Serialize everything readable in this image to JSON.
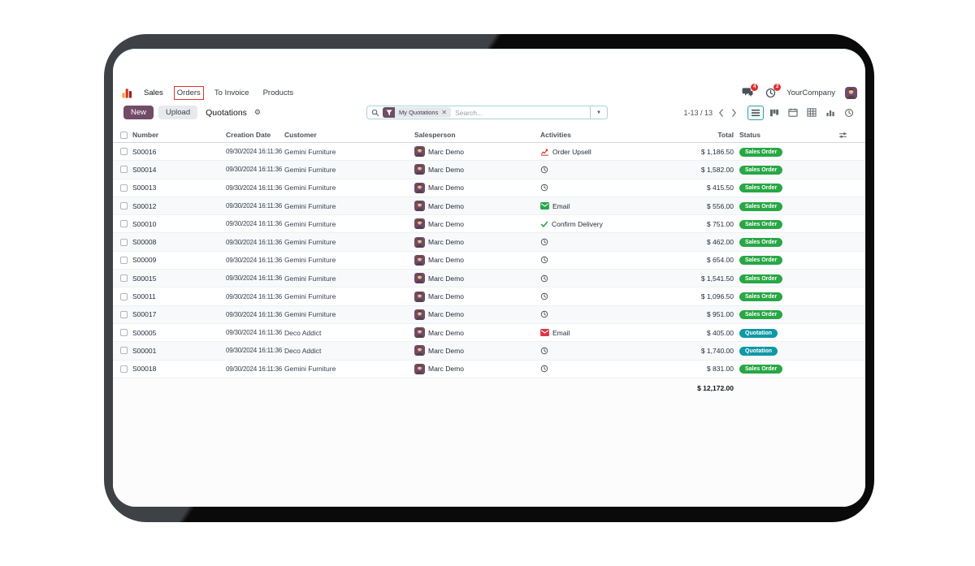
{
  "navbar": {
    "menus": [
      {
        "label": "Sales"
      },
      {
        "label": "Orders"
      },
      {
        "label": "To Invoice"
      },
      {
        "label": "Products"
      }
    ],
    "messages_badge": "4",
    "activities_badge": "2",
    "company": "YourCompany"
  },
  "control": {
    "new_label": "New",
    "upload_label": "Upload",
    "title": "Quotations",
    "search": {
      "facet_label": "My Quotations",
      "placeholder": "Search..."
    },
    "pager_display": "1-13 / 13"
  },
  "view_switcher": [
    "list",
    "kanban",
    "calendar",
    "pivot",
    "graph",
    "activity"
  ],
  "table": {
    "headers": [
      "Number",
      "Creation Date",
      "Customer",
      "Salesperson",
      "Activities",
      "Total",
      "Status"
    ],
    "rows": [
      {
        "number": "S00016",
        "date": "09/30/2024 16:11:36",
        "customer": "Gemini Furniture",
        "salesperson": "Marc Demo",
        "activity": {
          "type": "upsell",
          "label": "Order Upsell"
        },
        "total": "$ 1,186.50",
        "status": {
          "label": "Sales Order",
          "variant": "success"
        }
      },
      {
        "number": "S00014",
        "date": "09/30/2024 16:11:36",
        "customer": "Gemini Furniture",
        "salesperson": "Marc Demo",
        "activity": {
          "type": "clock",
          "label": ""
        },
        "total": "$ 1,582.00",
        "status": {
          "label": "Sales Order",
          "variant": "success"
        }
      },
      {
        "number": "S00013",
        "date": "09/30/2024 16:11:36",
        "customer": "Gemini Furniture",
        "salesperson": "Marc Demo",
        "activity": {
          "type": "clock",
          "label": ""
        },
        "total": "$ 415.50",
        "status": {
          "label": "Sales Order",
          "variant": "success"
        }
      },
      {
        "number": "S00012",
        "date": "09/30/2024 16:11:36",
        "customer": "Gemini Furniture",
        "salesperson": "Marc Demo",
        "activity": {
          "type": "email-green",
          "label": "Email"
        },
        "total": "$ 556.00",
        "status": {
          "label": "Sales Order",
          "variant": "success"
        }
      },
      {
        "number": "S00010",
        "date": "09/30/2024 16:11:36",
        "customer": "Gemini Furniture",
        "salesperson": "Marc Demo",
        "activity": {
          "type": "check",
          "label": "Confirm Delivery"
        },
        "total": "$ 751.00",
        "status": {
          "label": "Sales Order",
          "variant": "success"
        }
      },
      {
        "number": "S00008",
        "date": "09/30/2024 16:11:36",
        "customer": "Gemini Furniture",
        "salesperson": "Marc Demo",
        "activity": {
          "type": "clock",
          "label": ""
        },
        "total": "$ 462.00",
        "status": {
          "label": "Sales Order",
          "variant": "success"
        }
      },
      {
        "number": "S00009",
        "date": "09/30/2024 16:11:36",
        "customer": "Gemini Furniture",
        "salesperson": "Marc Demo",
        "activity": {
          "type": "clock",
          "label": ""
        },
        "total": "$ 654.00",
        "status": {
          "label": "Sales Order",
          "variant": "success"
        }
      },
      {
        "number": "S00015",
        "date": "09/30/2024 16:11:36",
        "customer": "Gemini Furniture",
        "salesperson": "Marc Demo",
        "activity": {
          "type": "clock",
          "label": ""
        },
        "total": "$ 1,541.50",
        "status": {
          "label": "Sales Order",
          "variant": "success"
        }
      },
      {
        "number": "S00011",
        "date": "09/30/2024 16:11:36",
        "customer": "Gemini Furniture",
        "salesperson": "Marc Demo",
        "activity": {
          "type": "clock",
          "label": ""
        },
        "total": "$ 1,096.50",
        "status": {
          "label": "Sales Order",
          "variant": "success"
        }
      },
      {
        "number": "S00017",
        "date": "09/30/2024 16:11:36",
        "customer": "Gemini Furniture",
        "salesperson": "Marc Demo",
        "activity": {
          "type": "clock",
          "label": ""
        },
        "total": "$ 951.00",
        "status": {
          "label": "Sales Order",
          "variant": "success"
        }
      },
      {
        "number": "S00005",
        "date": "09/30/2024 16:11:36",
        "customer": "Deco Addict",
        "salesperson": "Marc Demo",
        "activity": {
          "type": "email-red",
          "label": "Email"
        },
        "total": "$ 405.00",
        "status": {
          "label": "Quotation",
          "variant": "info"
        }
      },
      {
        "number": "S00001",
        "date": "09/30/2024 16:11:36",
        "customer": "Deco Addict",
        "salesperson": "Marc Demo",
        "activity": {
          "type": "clock",
          "label": ""
        },
        "total": "$ 1,740.00",
        "status": {
          "label": "Quotation",
          "variant": "info"
        }
      },
      {
        "number": "S00018",
        "date": "09/30/2024 16:11:36",
        "customer": "Gemini Furniture",
        "salesperson": "Marc Demo",
        "activity": {
          "type": "clock",
          "label": ""
        },
        "total": "$ 831.00",
        "status": {
          "label": "Sales Order",
          "variant": "success"
        }
      }
    ],
    "footer_total": "$ 12,172.00"
  },
  "colors": {
    "primary": "#714B67",
    "success_badge": "#28a745",
    "info_badge": "#0f98a6",
    "annotation": "#e5342a",
    "notification": "#e03131"
  }
}
